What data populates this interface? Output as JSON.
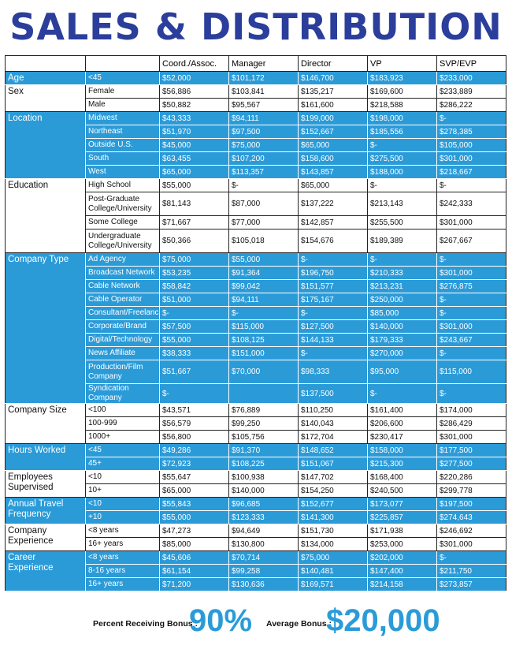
{
  "title": "SALES & DISTRIBUTION",
  "table": {
    "columns": [
      "Coord./Assoc.",
      "Manager",
      "Director",
      "VP",
      "SVP/EVP"
    ],
    "groups": [
      {
        "label": "Age",
        "rows": [
          {
            "label": "<45",
            "values": [
              "$52,000",
              "$101,172",
              "$146,700",
              "$183,923",
              "$233,000"
            ]
          }
        ]
      },
      {
        "label": "Sex",
        "rows": [
          {
            "label": "Female",
            "values": [
              "$56,886",
              "$103,841",
              "$135,217",
              "$169,600",
              "$233,889"
            ]
          },
          {
            "label": "Male",
            "values": [
              "$50,882",
              "$95,567",
              "$161,600",
              "$218,588",
              "$286,222"
            ]
          }
        ]
      },
      {
        "label": "Location",
        "rows": [
          {
            "label": "Midwest",
            "values": [
              "$43,333",
              "$94,111",
              "$199,000",
              "$198,000",
              "$-"
            ]
          },
          {
            "label": "Northeast",
            "values": [
              "$51,970",
              "$97,500",
              "$152,667",
              "$185,556",
              "$278,385"
            ]
          },
          {
            "label": "Outside U.S.",
            "values": [
              "$45,000",
              "$75,000",
              "$65,000",
              "$-",
              "$105,000"
            ]
          },
          {
            "label": "South",
            "values": [
              "$63,455",
              "$107,200",
              "$158,600",
              "$275,500",
              "$301,000"
            ]
          },
          {
            "label": "West",
            "values": [
              "$65,000",
              "$113,357",
              "$143,857",
              "$188,000",
              "$218,667"
            ]
          }
        ]
      },
      {
        "label": "Education",
        "rows": [
          {
            "label": "High School",
            "values": [
              "$55,000",
              "$-",
              "$65,000",
              "$-",
              "$-"
            ]
          },
          {
            "label": "Post-Graduate College/University",
            "values": [
              "$81,143",
              "$87,000",
              "$137,222",
              "$213,143",
              "$242,333"
            ]
          },
          {
            "label": "Some College",
            "values": [
              "$71,667",
              "$77,000",
              "$142,857",
              "$255,500",
              "$301,000"
            ]
          },
          {
            "label": "Undergraduate College/University",
            "values": [
              "$50,366",
              "$105,018",
              "$154,676",
              "$189,389",
              "$267,667"
            ]
          }
        ]
      },
      {
        "label": "Company Type",
        "rows": [
          {
            "label": "Ad Agency",
            "values": [
              "$75,000",
              "$55,000",
              "$-",
              "$-",
              "$-"
            ]
          },
          {
            "label": "Broadcast Network",
            "values": [
              "$53,235",
              "$91,364",
              "$196,750",
              "$210,333",
              "$301,000"
            ]
          },
          {
            "label": "Cable Network",
            "values": [
              "$58,842",
              "$99,042",
              "$151,577",
              "$213,231",
              "$276,875"
            ]
          },
          {
            "label": "Cable Operator",
            "values": [
              "$51,000",
              "$94,111",
              "$175,167",
              "$250,000",
              "$-"
            ]
          },
          {
            "label": "Consultant/Freelance",
            "values": [
              "$-",
              "$-",
              "$-",
              "$85,000",
              "$-"
            ]
          },
          {
            "label": "Corporate/Brand",
            "values": [
              "$57,500",
              "$115,000",
              "$127,500",
              "$140,000",
              "$301,000"
            ]
          },
          {
            "label": "Digital/Technology",
            "values": [
              "$55,000",
              "$108,125",
              "$144,133",
              "$179,333",
              "$243,667"
            ]
          },
          {
            "label": "News Affiliate",
            "values": [
              "$38,333",
              "$151,000",
              "$-",
              "$270,000",
              "$-"
            ]
          },
          {
            "label": "Production/Film Company",
            "values": [
              "$51,667",
              "$70,000",
              "$98,333",
              "$95,000",
              "$115,000"
            ]
          },
          {
            "label": "Syndication Company",
            "values": [
              "$-",
              null,
              "$137,500",
              "$-",
              "$-"
            ]
          }
        ]
      },
      {
        "label": "Company Size",
        "rows": [
          {
            "label": "<100",
            "values": [
              "$43,571",
              "$76,889",
              "$110,250",
              "$161,400",
              "$174,000"
            ]
          },
          {
            "label": "100-999",
            "values": [
              "$56,579",
              "$99,250",
              "$140,043",
              "$206,600",
              "$286,429"
            ]
          },
          {
            "label": "1000+",
            "values": [
              "$56,800",
              "$105,756",
              "$172,704",
              "$230,417",
              "$301,000"
            ]
          }
        ]
      },
      {
        "label": "Hours Worked",
        "rows": [
          {
            "label": "<45",
            "values": [
              "$49,286",
              "$91,370",
              "$148,652",
              "$158,000",
              "$177,500"
            ]
          },
          {
            "label": "45+",
            "values": [
              "$72,923",
              "$108,225",
              "$151,067",
              "$215,300",
              "$277,500"
            ]
          }
        ]
      },
      {
        "label": "Employees Supervised",
        "rows": [
          {
            "label": "<10",
            "values": [
              "$55,647",
              "$100,938",
              "$147,702",
              "$168,400",
              "$220,286"
            ]
          },
          {
            "label": "10+",
            "values": [
              "$65,000",
              "$140,000",
              "$154,250",
              "$240,500",
              "$299,778"
            ]
          }
        ]
      },
      {
        "label": "Annual Travel Frequency",
        "rows": [
          {
            "label": "<10",
            "values": [
              "$55,843",
              "$96,685",
              "$152,677",
              "$173,077",
              "$197,500"
            ]
          },
          {
            "label": "+10",
            "values": [
              "$55,000",
              "$123,333",
              "$141,300",
              "$225,857",
              "$274,643"
            ]
          }
        ]
      },
      {
        "label": "Company Experience",
        "rows": [
          {
            "label": "<8 years",
            "values": [
              "$47,273",
              "$94,649",
              "$151,730",
              "$171,938",
              "$246,692"
            ]
          },
          {
            "label": "16+ years",
            "values": [
              "$85,000",
              "$130,800",
              "$134,000",
              "$253,000",
              "$301,000"
            ]
          }
        ]
      },
      {
        "label": "Career Experience",
        "rows": [
          {
            "label": "<8 years",
            "values": [
              "$45,606",
              "$70,714",
              "$75,000",
              "$202,000",
              "$-"
            ]
          },
          {
            "label": "8-16 years",
            "values": [
              "$61,154",
              "$99,258",
              "$140,481",
              "$147,400",
              "$211,750"
            ]
          },
          {
            "label": "16+ years",
            "values": [
              "$71,200",
              "$130,636",
              "$169,571",
              "$214,158",
              "$273,857"
            ]
          }
        ]
      }
    ]
  },
  "footer": {
    "bonus_percent_label": "Percent Receiving Bonus :",
    "bonus_percent": "90%",
    "average_bonus_label": "Average Bonus :",
    "average_bonus": "$20,000"
  }
}
